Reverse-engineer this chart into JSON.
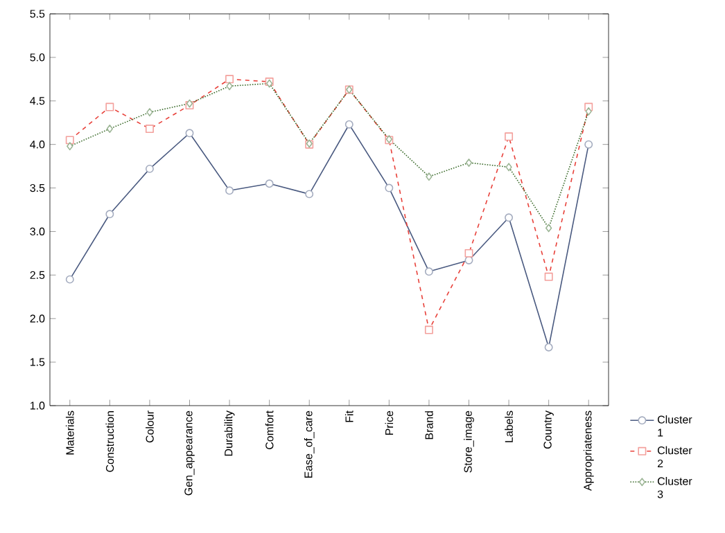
{
  "chart_data": {
    "type": "line",
    "categories": [
      "Materials",
      "Construction",
      "Colour",
      "Gen_appearance",
      "Durability",
      "Comfort",
      "Ease_of_care",
      "Fit",
      "Price",
      "Brand",
      "Store_image",
      "Labels",
      "Country",
      "Appropriateness"
    ],
    "series": [
      {
        "name": "Cluster 1",
        "color": "#4a5a80",
        "marker": "circle",
        "line_style": "solid",
        "values": [
          2.45,
          3.2,
          3.72,
          4.13,
          3.47,
          3.55,
          3.43,
          4.23,
          3.5,
          2.54,
          2.67,
          3.16,
          1.67,
          4.0
        ]
      },
      {
        "name": "Cluster 2",
        "color": "#e8413a",
        "marker": "square",
        "line_style": "dashed",
        "values": [
          4.05,
          4.43,
          4.18,
          4.45,
          4.75,
          4.72,
          4.0,
          4.63,
          4.05,
          1.87,
          2.75,
          4.09,
          2.48,
          4.43
        ]
      },
      {
        "name": "Cluster 3",
        "color": "#3a6a2a",
        "marker": "diamond",
        "line_style": "dotted",
        "values": [
          3.98,
          4.18,
          4.37,
          4.47,
          4.67,
          4.7,
          4.01,
          4.63,
          4.06,
          3.63,
          3.79,
          3.74,
          3.04,
          4.38
        ]
      }
    ],
    "ylim": [
      1.0,
      5.5
    ],
    "yticks": [
      {
        "value": 1.0,
        "label": "1.0"
      },
      {
        "value": 1.5,
        "label": "1.5"
      },
      {
        "value": 2.0,
        "label": "2.0"
      },
      {
        "value": 2.5,
        "label": "2.5"
      },
      {
        "value": 3.0,
        "label": "3.0"
      },
      {
        "value": 3.5,
        "label": "3.5"
      },
      {
        "value": 4.0,
        "label": "4.0"
      },
      {
        "value": 4.5,
        "label": "4.5"
      },
      {
        "value": 5.0,
        "label": "5.0"
      },
      {
        "value": 5.5,
        "label": "5.5"
      }
    ],
    "grid": false,
    "legend": "bottom right"
  }
}
